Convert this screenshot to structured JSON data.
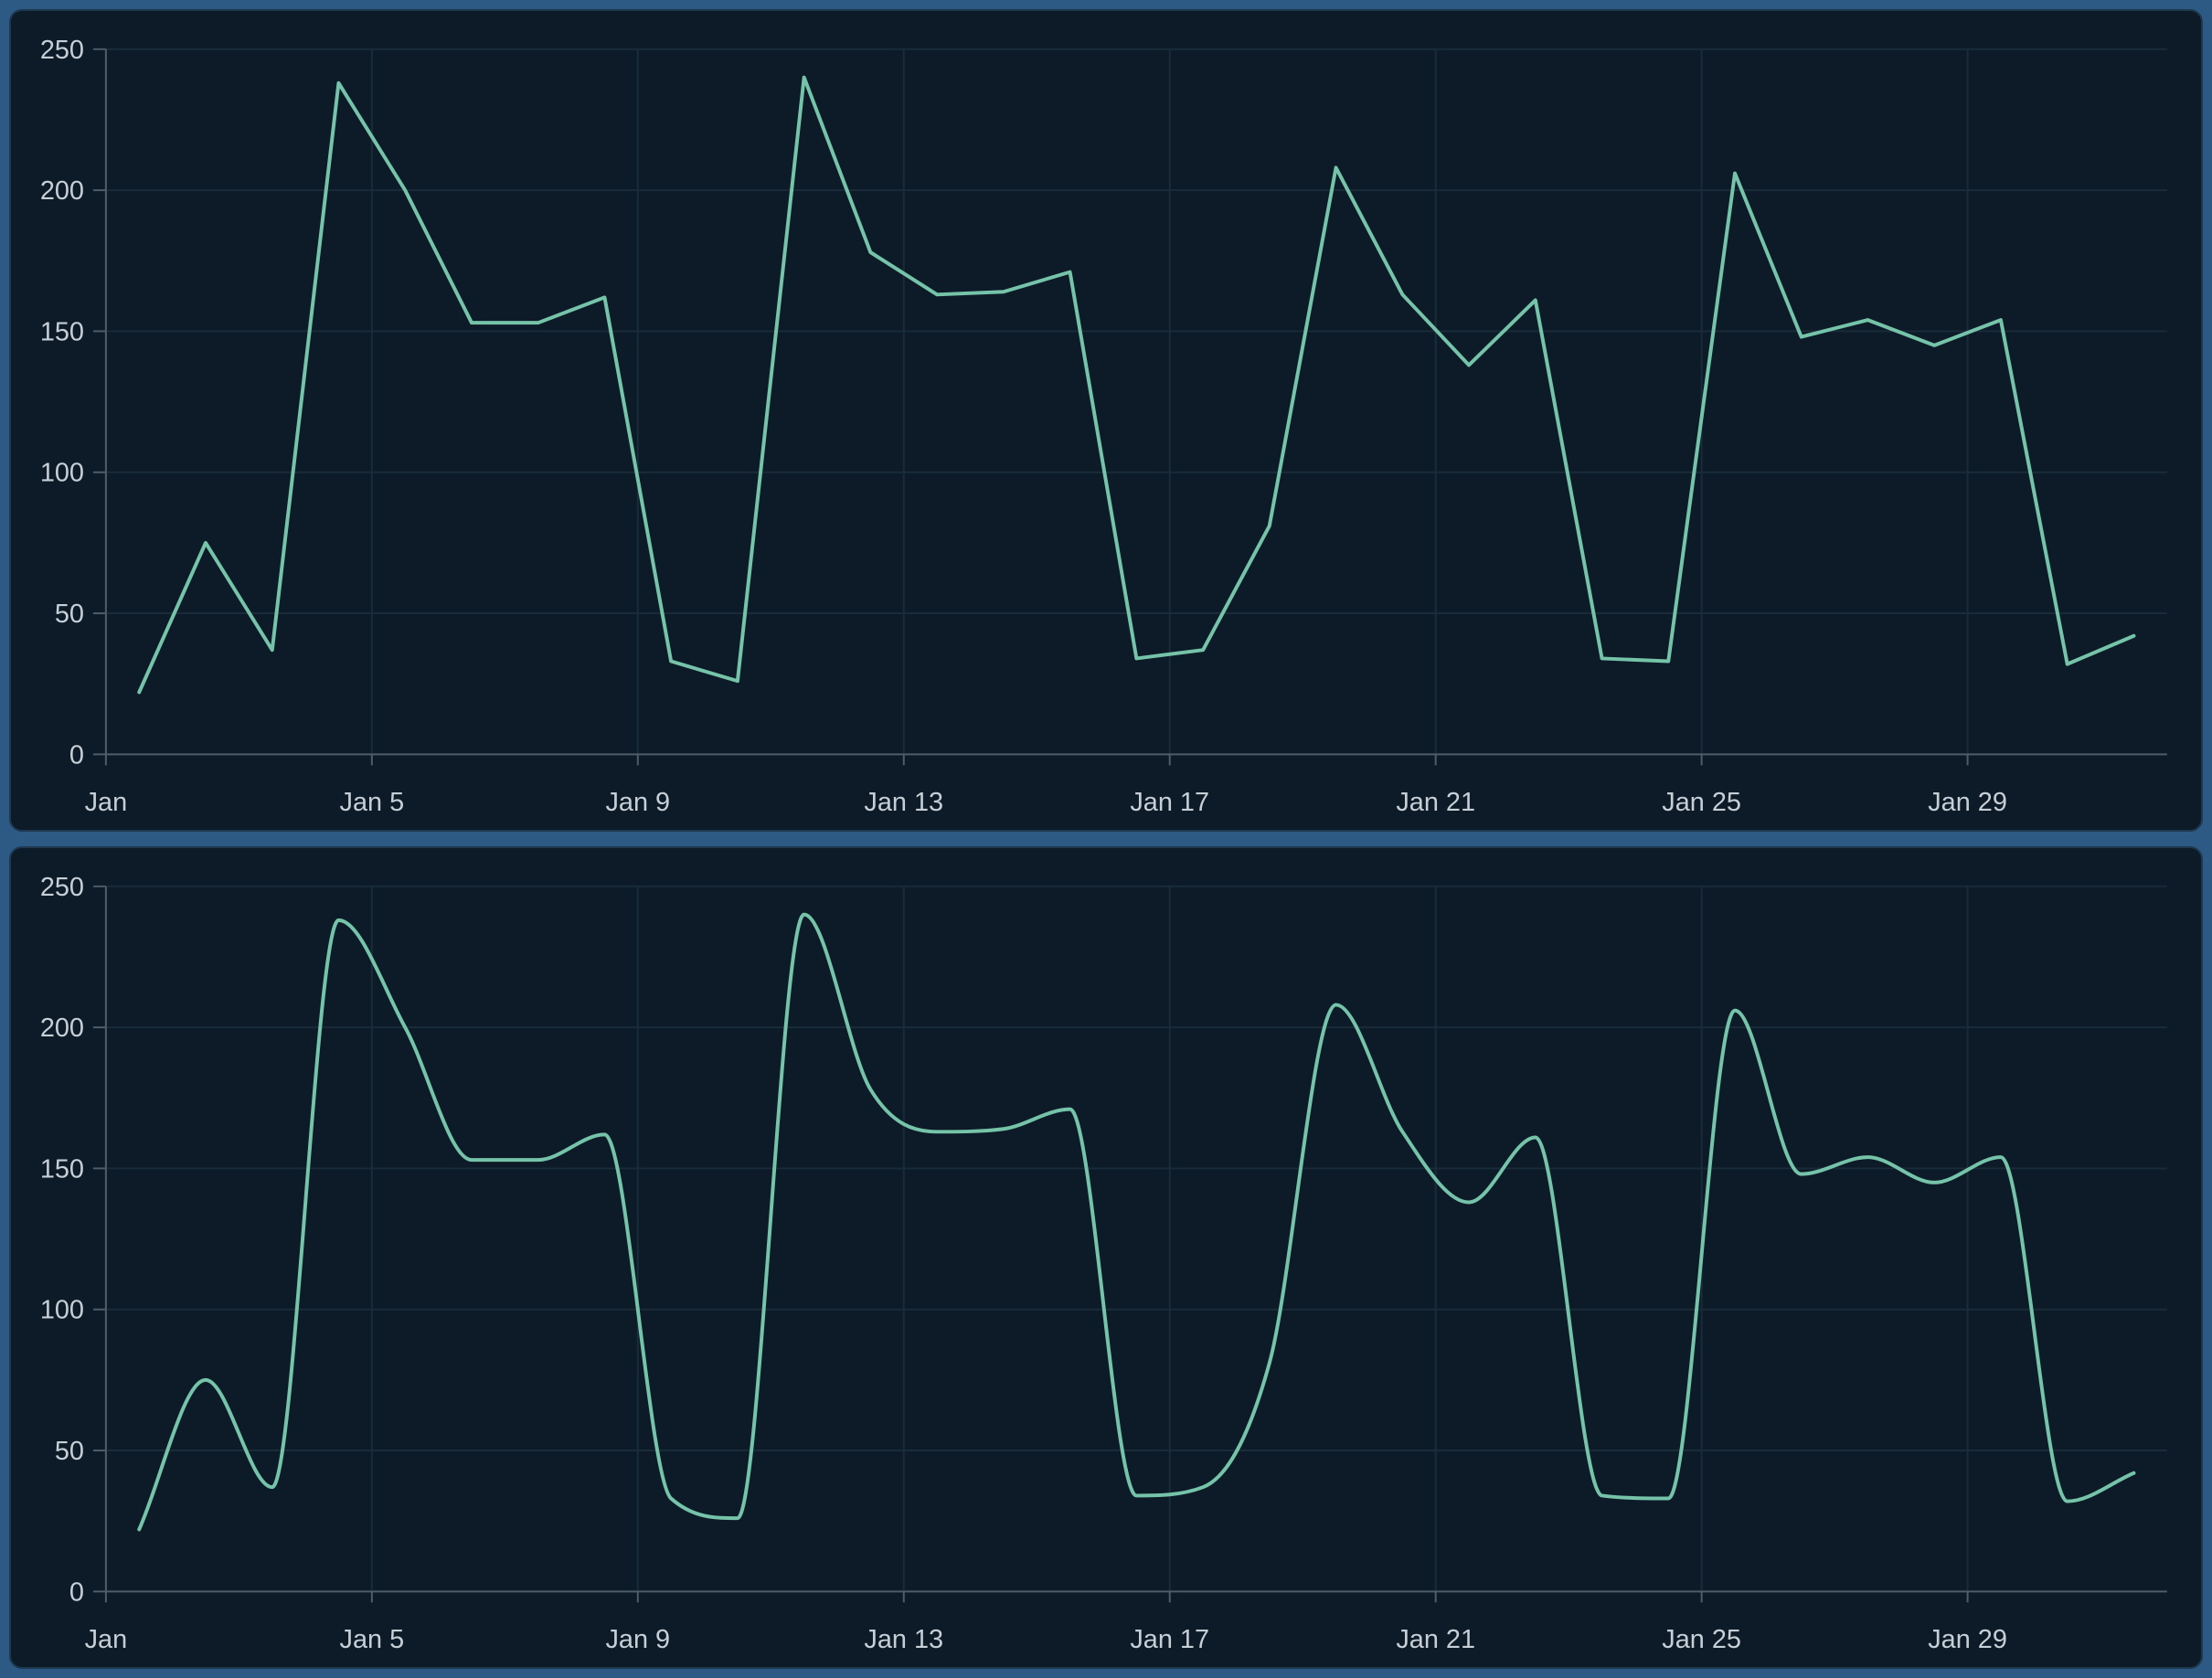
{
  "theme": {
    "background": "#2d5a84",
    "panel": "#0c1b27",
    "panel_border": "#1e3850",
    "line": "#75c3a8",
    "axis": "#4e5d69",
    "grid": "#1a2b3a",
    "label": "#c6ced6"
  },
  "chart_data": [
    {
      "type": "line",
      "interpolation": "linear",
      "title": "",
      "categories": [
        "Jan 1",
        "Jan 2",
        "Jan 3",
        "Jan 4",
        "Jan 5",
        "Jan 6",
        "Jan 7",
        "Jan 8",
        "Jan 9",
        "Jan 10",
        "Jan 11",
        "Jan 12",
        "Jan 13",
        "Jan 14",
        "Jan 15",
        "Jan 16",
        "Jan 17",
        "Jan 18",
        "Jan 19",
        "Jan 20",
        "Jan 21",
        "Jan 22",
        "Jan 23",
        "Jan 24",
        "Jan 25",
        "Jan 26",
        "Jan 27",
        "Jan 28",
        "Jan 29",
        "Jan 30",
        "Jan 31"
      ],
      "values": [
        22,
        75,
        37,
        238,
        200,
        153,
        153,
        162,
        33,
        26,
        240,
        178,
        163,
        164,
        171,
        34,
        37,
        81,
        208,
        163,
        138,
        161,
        34,
        33,
        206,
        148,
        154,
        145,
        154,
        32,
        42
      ],
      "x_tick_labels": [
        "Jan",
        "Jan 5",
        "Jan 9",
        "Jan 13",
        "Jan 17",
        "Jan 21",
        "Jan 25",
        "Jan 29"
      ],
      "x_tick_indices": [
        0,
        4,
        8,
        12,
        16,
        20,
        24,
        28
      ],
      "y_ticks": [
        0,
        50,
        100,
        150,
        200,
        250
      ],
      "ylim": [
        0,
        250
      ],
      "xlabel": "",
      "ylabel": "",
      "grid": true,
      "legend": false
    },
    {
      "type": "line",
      "interpolation": "smooth",
      "title": "",
      "categories": [
        "Jan 1",
        "Jan 2",
        "Jan 3",
        "Jan 4",
        "Jan 5",
        "Jan 6",
        "Jan 7",
        "Jan 8",
        "Jan 9",
        "Jan 10",
        "Jan 11",
        "Jan 12",
        "Jan 13",
        "Jan 14",
        "Jan 15",
        "Jan 16",
        "Jan 17",
        "Jan 18",
        "Jan 19",
        "Jan 20",
        "Jan 21",
        "Jan 22",
        "Jan 23",
        "Jan 24",
        "Jan 25",
        "Jan 26",
        "Jan 27",
        "Jan 28",
        "Jan 29",
        "Jan 30",
        "Jan 31"
      ],
      "values": [
        22,
        75,
        37,
        238,
        200,
        153,
        153,
        162,
        33,
        26,
        240,
        178,
        163,
        164,
        171,
        34,
        37,
        81,
        208,
        163,
        138,
        161,
        34,
        33,
        206,
        148,
        154,
        145,
        154,
        32,
        42
      ],
      "x_tick_labels": [
        "Jan",
        "Jan 5",
        "Jan 9",
        "Jan 13",
        "Jan 17",
        "Jan 21",
        "Jan 25",
        "Jan 29"
      ],
      "x_tick_indices": [
        0,
        4,
        8,
        12,
        16,
        20,
        24,
        28
      ],
      "y_ticks": [
        0,
        50,
        100,
        150,
        200,
        250
      ],
      "ylim": [
        0,
        250
      ],
      "xlabel": "",
      "ylabel": "",
      "grid": true,
      "legend": false
    }
  ]
}
